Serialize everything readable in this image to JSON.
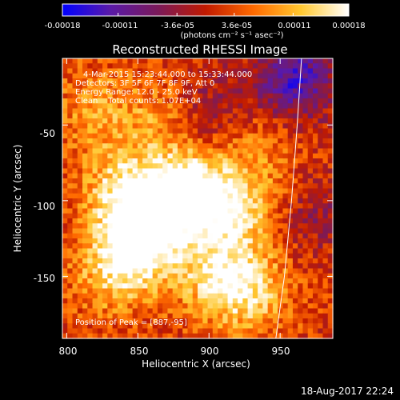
{
  "colorbar": {
    "ticks": [
      "-0.00018",
      "-0.00011",
      "-3.6e-05",
      "3.6e-05",
      "0.00011",
      "0.00018"
    ],
    "tick_values": [
      -0.00018,
      -0.00011,
      -3.6e-05,
      3.6e-05,
      0.00011,
      0.00018
    ],
    "range": [
      -0.00018,
      0.00018
    ],
    "units": "(photons cm⁻² s⁻¹ asec⁻²)",
    "colors": [
      "#0000ff",
      "#5a1aa8",
      "#7a1a5a",
      "#c01a00",
      "#ff6a00",
      "#ffc830",
      "#ffffff"
    ]
  },
  "image": {
    "title": "Reconstructed RHESSI Image",
    "time_range": "4-Mar-2015 15:23:44.000 to 15:33:44.000",
    "detectors": "Detectors: 3F 5F 6F 7F 8F 9F, Att 0",
    "energy": "Energy Range: 12.0 - 25.0 keV",
    "clean": "Clean    Total counts: 1.07E+04",
    "peak": "Position of Peak = [887,-95]"
  },
  "timestamp": "18-Aug-2017 22:24",
  "chart_data": {
    "type": "heatmap",
    "title": "Reconstructed RHESSI Image",
    "xlabel": "Heliocentric X (arcsec)",
    "ylabel": "Heliocentric Y (arcsec)",
    "xlim": [
      797,
      987
    ],
    "ylim": [
      -191,
      -6
    ],
    "xticks": [
      800,
      850,
      900,
      950
    ],
    "yticks": [
      -50,
      -100,
      -150
    ],
    "grid": false,
    "peak": [
      887,
      -95
    ],
    "value_range": [
      -0.00018,
      0.00018
    ],
    "sources": [
      {
        "x": 887,
        "y": -95,
        "value": 0.00018
      },
      {
        "x": 850,
        "y": -130,
        "value": 0.00016
      },
      {
        "x": 858,
        "y": -105,
        "value": 0.00013
      },
      {
        "x": 920,
        "y": -105,
        "value": 0.00012
      },
      {
        "x": 905,
        "y": -150,
        "value": 0.00011
      },
      {
        "x": 930,
        "y": -160,
        "value": 0.0001
      },
      {
        "x": 835,
        "y": -90,
        "value": 8e-05
      },
      {
        "x": 828,
        "y": -150,
        "value": 7e-05
      },
      {
        "x": 820,
        "y": -40,
        "value": 7e-05
      },
      {
        "x": 865,
        "y": -45,
        "value": 6e-05
      },
      {
        "x": 940,
        "y": -60,
        "value": 5e-05
      },
      {
        "x": 960,
        "y": -20,
        "value": -0.00015
      },
      {
        "x": 900,
        "y": -40,
        "value": -6e-05
      },
      {
        "x": 975,
        "y": -110,
        "value": -5e-05
      }
    ],
    "limb_curve": [
      [
        965,
        -6
      ],
      [
        962,
        -50
      ],
      [
        958,
        -100
      ],
      [
        953,
        -150
      ],
      [
        947,
        -191
      ]
    ]
  }
}
